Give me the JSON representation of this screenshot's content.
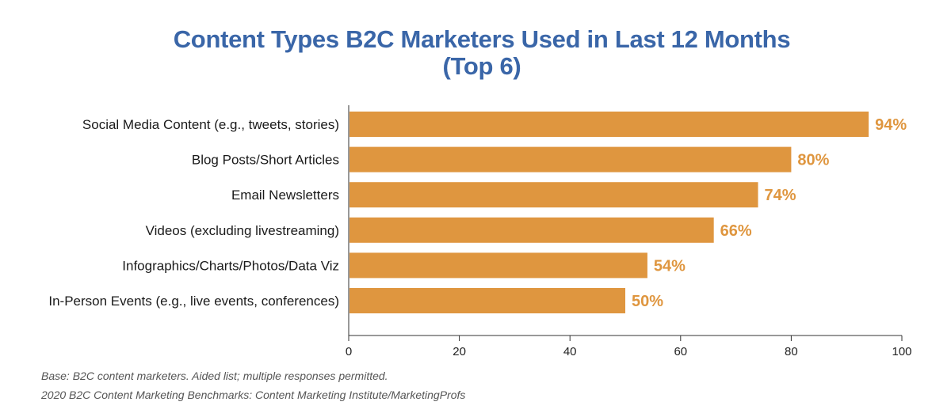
{
  "chart_data": {
    "type": "bar",
    "orientation": "horizontal",
    "title_line1": "Content Types B2C Marketers Used in Last 12 Months",
    "title_line2": "(Top 6)",
    "categories": [
      "Social Media Content (e.g., tweets, stories)",
      "Blog Posts/Short Articles",
      "Email Newsletters",
      "Videos (excluding livestreaming)",
      "Infographics/Charts/Photos/Data Viz",
      "In-Person Events (e.g., live events, conferences)"
    ],
    "values": [
      94,
      80,
      74,
      66,
      54,
      50
    ],
    "value_labels": [
      "94%",
      "80%",
      "74%",
      "66%",
      "54%",
      "50%"
    ],
    "xlim": [
      0,
      100
    ],
    "xticks": [
      0,
      20,
      40,
      60,
      80,
      100
    ],
    "bar_color": "#df963f",
    "value_label_color": "#df963f",
    "grid": false,
    "legend": "none"
  },
  "footnotes": {
    "base": "Base: B2C content marketers. Aided list; multiple responses permitted.",
    "source": "2020 B2C Content Marketing Benchmarks: Content Marketing Institute/MarketingProfs"
  }
}
